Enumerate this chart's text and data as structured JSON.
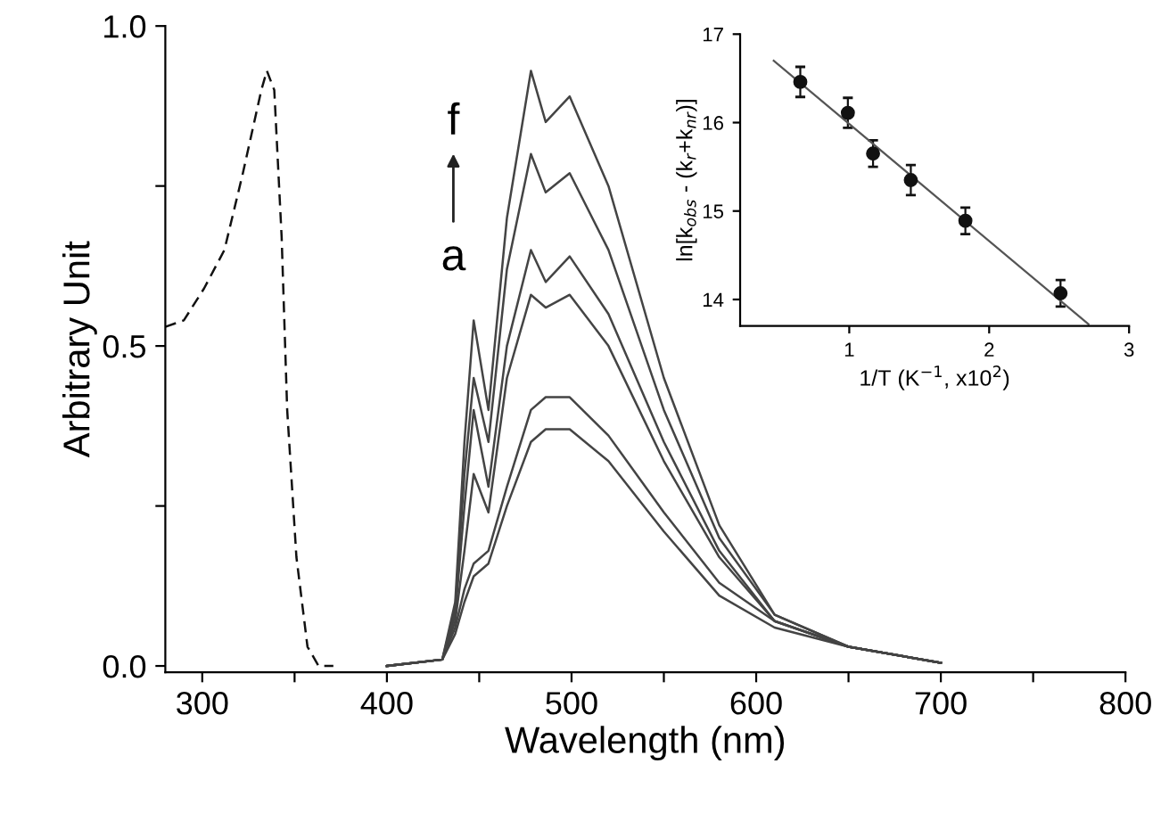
{
  "chart_data": [
    {
      "type": "line",
      "xlabel": "Wavelength (nm)",
      "ylabel": "Arbitrary Unit",
      "xlim": [
        280,
        800
      ],
      "ylim": [
        -0.01,
        1.0
      ],
      "xticks": [
        300,
        {
          "value": 350,
          "label": null
        },
        400,
        {
          "value": 450,
          "label": null
        },
        500,
        {
          "value": 550,
          "label": null
        },
        600,
        {
          "value": 650,
          "label": null
        },
        700,
        {
          "value": 750,
          "label": null
        },
        800
      ],
      "yticks": [
        {
          "value": 0.0,
          "label": "0.0"
        },
        {
          "value": 0.25,
          "label": null
        },
        0.5,
        {
          "value": 0.75,
          "label": null
        },
        {
          "value": 1.0,
          "label": "1.0"
        }
      ],
      "grid": false,
      "legend": false,
      "annotations": [
        "f",
        "a"
      ],
      "series": [
        {
          "color": "#111111",
          "line_style": "dashed",
          "x": [
            280,
            290,
            301,
            312,
            322,
            332,
            335,
            339,
            343,
            346,
            351,
            357,
            363,
            371
          ],
          "values": [
            0.53,
            0.54,
            0.59,
            0.65,
            0.77,
            0.9,
            0.93,
            0.9,
            0.67,
            0.4,
            0.17,
            0.03,
            0.0,
            0.0
          ]
        },
        {
          "color": "#444444",
          "x": [
            400,
            430,
            437,
            442,
            447,
            455,
            465,
            478,
            486,
            499,
            520,
            550,
            580,
            610,
            650,
            700
          ],
          "values": [
            0,
            0.01,
            0.05,
            0.1,
            0.14,
            0.16,
            0.25,
            0.35,
            0.37,
            0.37,
            0.32,
            0.21,
            0.11,
            0.06,
            0.03,
            0.005
          ]
        },
        {
          "color": "#444444",
          "x": [
            400,
            430,
            437,
            442,
            447,
            455,
            465,
            478,
            486,
            499,
            520,
            550,
            580,
            610,
            650,
            700
          ],
          "values": [
            0,
            0.01,
            0.06,
            0.12,
            0.16,
            0.18,
            0.28,
            0.4,
            0.42,
            0.42,
            0.36,
            0.24,
            0.13,
            0.07,
            0.03,
            0.005
          ]
        },
        {
          "color": "#444444",
          "x": [
            400,
            430,
            437,
            442,
            447,
            455,
            465,
            478,
            486,
            499,
            520,
            550,
            580,
            610,
            650,
            700
          ],
          "values": [
            0,
            0.01,
            0.07,
            0.18,
            0.3,
            0.24,
            0.45,
            0.58,
            0.56,
            0.58,
            0.5,
            0.32,
            0.17,
            0.07,
            0.03,
            0.005
          ]
        },
        {
          "color": "#444444",
          "x": [
            400,
            430,
            437,
            442,
            447,
            455,
            465,
            478,
            486,
            499,
            520,
            550,
            580,
            610,
            650,
            700
          ],
          "values": [
            0,
            0.01,
            0.08,
            0.25,
            0.4,
            0.28,
            0.5,
            0.65,
            0.6,
            0.64,
            0.55,
            0.35,
            0.18,
            0.07,
            0.03,
            0.005
          ]
        },
        {
          "color": "#444444",
          "x": [
            400,
            430,
            437,
            442,
            447,
            455,
            465,
            478,
            486,
            499,
            520,
            550,
            580,
            610,
            650,
            700
          ],
          "values": [
            0,
            0.01,
            0.09,
            0.3,
            0.45,
            0.35,
            0.62,
            0.8,
            0.74,
            0.77,
            0.65,
            0.4,
            0.2,
            0.08,
            0.03,
            0.005
          ]
        },
        {
          "color": "#444444",
          "x": [
            400,
            430,
            437,
            442,
            447,
            455,
            465,
            478,
            486,
            499,
            520,
            550,
            580,
            610,
            650,
            700
          ],
          "values": [
            0,
            0.01,
            0.1,
            0.35,
            0.54,
            0.4,
            0.7,
            0.93,
            0.85,
            0.89,
            0.75,
            0.45,
            0.22,
            0.08,
            0.03,
            0.005
          ]
        }
      ]
    },
    {
      "type": "scatter",
      "xlabel": "1/T (K$^{−1}$, x10$^{2}$)",
      "ylabel": "ln[k$_{obs}$ - (k$_{r}$+k$_{nr}$)]",
      "xlim": [
        0.22,
        3.0
      ],
      "ylim": [
        13.7,
        17.0
      ],
      "xticks": [
        1,
        2,
        3
      ],
      "yticks": [
        14,
        15,
        16,
        17
      ],
      "grid": false,
      "legend": false,
      "series": [
        {
          "marker": "circle",
          "color": "#111111",
          "x": [
            0.65,
            0.99,
            1.17,
            1.44,
            1.83,
            2.51
          ],
          "values": [
            16.46,
            16.11,
            15.65,
            15.35,
            14.89,
            14.07
          ],
          "errors": [
            0.17,
            0.17,
            0.15,
            0.17,
            0.15,
            0.15
          ]
        },
        {
          "type": "line",
          "color": "#555555",
          "x": [
            0.46,
            2.71
          ],
          "values": [
            16.7,
            13.72
          ]
        }
      ]
    }
  ]
}
